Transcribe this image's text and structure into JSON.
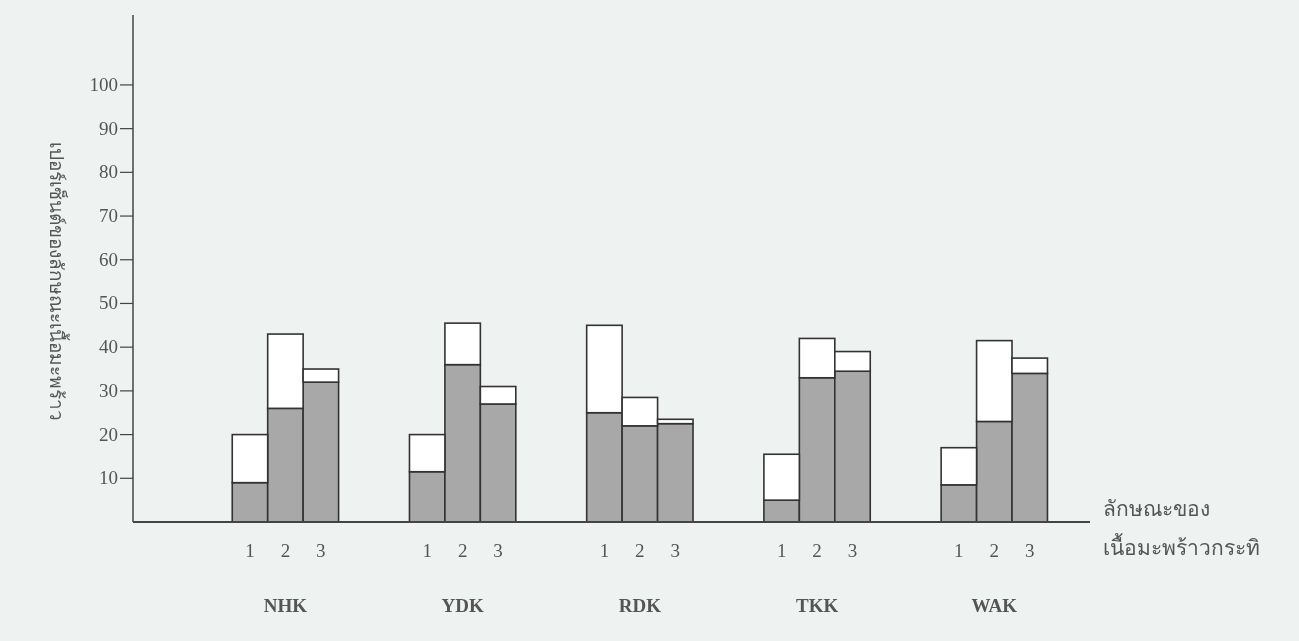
{
  "chart_data": {
    "type": "bar",
    "stacked": true,
    "ylabel": "เปอร์เซ็นต์ของลักษณะเนื้อมะพร้าว",
    "xlabel": "ลักษณะของ เนื้อมะพร้าวกระทิ",
    "categories": [
      null,
      null,
      null,
      "1",
      "2",
      "3",
      null,
      null,
      "1",
      "2",
      "3",
      null,
      null,
      "1",
      "2",
      "3",
      null,
      null,
      "1",
      "2",
      "3",
      null,
      null,
      "1",
      "2",
      "3"
    ],
    "series": [
      {
        "color": "#a8a8a8",
        "values": [
          null,
          null,
          null,
          9,
          26,
          32,
          null,
          null,
          11.5,
          36,
          27,
          null,
          null,
          25,
          22,
          22.5,
          null,
          null,
          5,
          33,
          34.5,
          null,
          null,
          8.5,
          23,
          34
        ]
      },
      {
        "color": "#ffffff",
        "values": [
          null,
          null,
          null,
          11,
          17,
          3,
          null,
          null,
          8.5,
          9.5,
          4,
          null,
          null,
          20,
          6.5,
          1,
          null,
          null,
          10.5,
          9,
          4.5,
          null,
          null,
          8.5,
          18.5,
          3.5
        ]
      }
    ],
    "ylim": [
      0,
      116
    ],
    "yticks": [
      10,
      20,
      30,
      40,
      50,
      60,
      70,
      80,
      90,
      100
    ],
    "annotations": [
      "NHK",
      "YDK",
      "RDK",
      "TKK",
      "WAK"
    ]
  }
}
